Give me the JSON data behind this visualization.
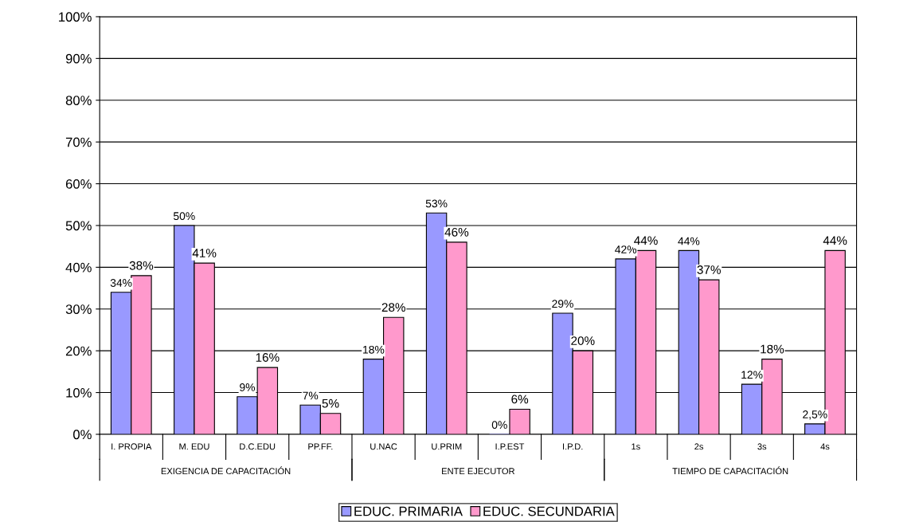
{
  "chart_data": {
    "type": "bar",
    "categories": [
      "I. PROPIA",
      "M. EDU",
      "D.C.EDU",
      "PP.FF.",
      "U.NAC",
      "U.PRIM",
      "I.P.EST",
      "I.P.D.",
      "1s",
      "2s",
      "3s",
      "4s"
    ],
    "series": [
      {
        "name": "EDUC. PRIMARIA",
        "color": "#9999ff",
        "values": [
          34,
          50,
          9,
          7,
          18,
          53,
          0,
          29,
          42,
          44,
          12,
          2.5
        ],
        "value_labels": [
          "34%",
          "50%",
          "9%",
          "7%",
          "18%",
          "53%",
          "0%",
          "29%",
          "42%",
          "44%",
          "12%",
          "2,5%"
        ]
      },
      {
        "name": "EDUC. SECUNDARIA",
        "color": "#ff99cc",
        "values": [
          38,
          41,
          16,
          5,
          28,
          46,
          6,
          20,
          44,
          37,
          18,
          44
        ],
        "value_labels": [
          "38%",
          "41%",
          "16%",
          "5%",
          "28%",
          "46%",
          "6%",
          "20%",
          "44%",
          "37%",
          "18%",
          "44%"
        ]
      }
    ],
    "ylim": [
      0,
      100
    ],
    "yticks": [
      {
        "value": 0,
        "label": "0%"
      },
      {
        "value": 10,
        "label": "10%"
      },
      {
        "value": 20,
        "label": "20%"
      },
      {
        "value": 30,
        "label": "30%"
      },
      {
        "value": 40,
        "label": "40%"
      },
      {
        "value": 50,
        "label": "50%"
      },
      {
        "value": 60,
        "label": "60%"
      },
      {
        "value": 70,
        "label": "70%"
      },
      {
        "value": 80,
        "label": "80%"
      },
      {
        "value": 90,
        "label": "90%"
      },
      {
        "value": 100,
        "label": "100%"
      }
    ],
    "annotations": [
      "EXIGENCIA DE CAPACITACIÓN",
      "ENTE EJECUTOR",
      "TIEMPO DE CAPACITACIÓN"
    ],
    "grid": "y",
    "legend": "bottom"
  }
}
